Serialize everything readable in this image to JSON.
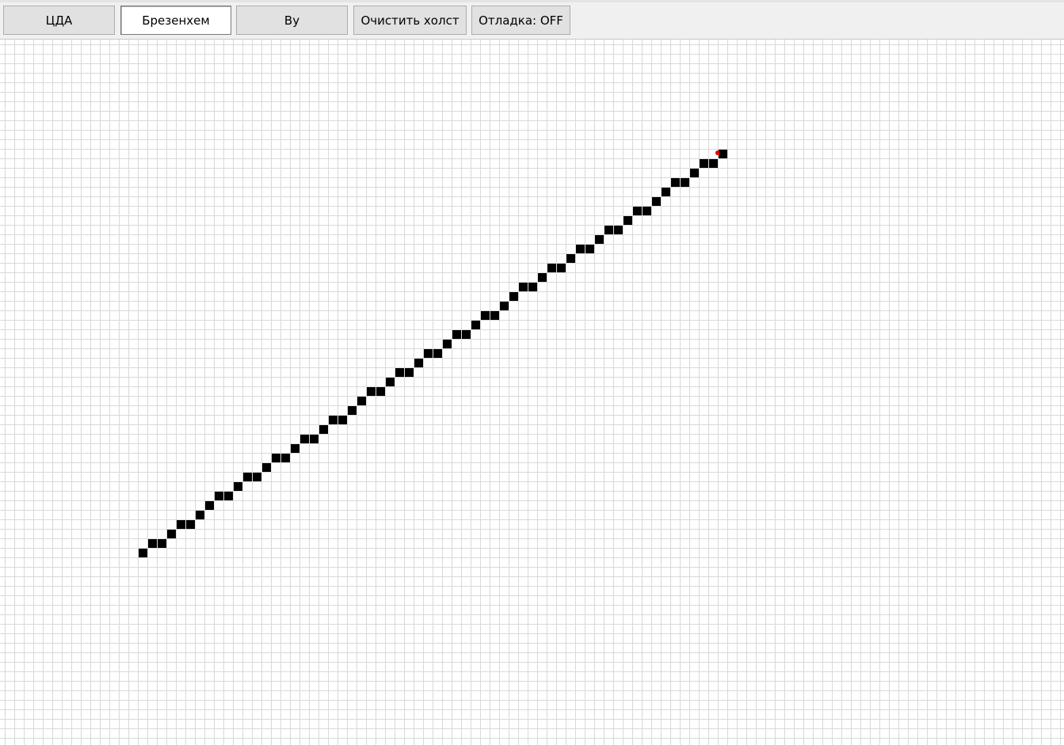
{
  "toolbar": {
    "buttons": {
      "dda": "ЦДА",
      "bresenham": "Брезенхем",
      "wu": "By",
      "clear": "Очистить холст",
      "debug": "Отладка: OFF"
    },
    "active_algorithm": "bresenham"
  },
  "canvas": {
    "grid_color": "#d9d9d9",
    "pixel_color": "#000000",
    "cursor_marker_color": "#e00000",
    "line": {
      "algorithm": "bresenham",
      "start_cell": [
        14,
        53
      ],
      "end_cell": [
        75,
        11
      ]
    }
  }
}
